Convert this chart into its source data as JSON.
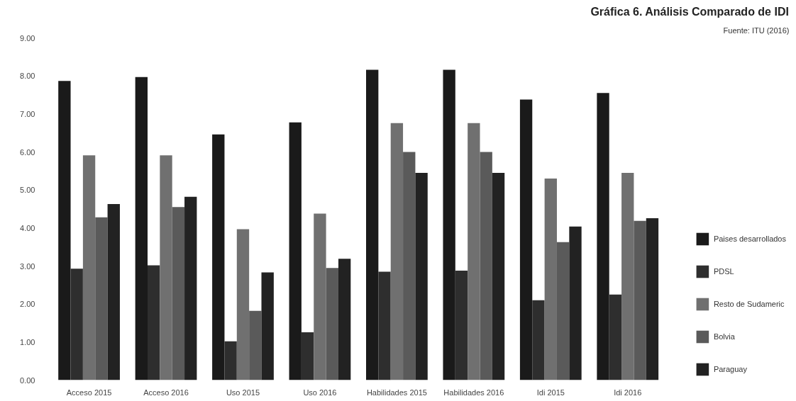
{
  "chart_data": {
    "type": "bar",
    "title": "Gráfica 6. Análisis Comparado de IDI",
    "annotations": [
      "Fuente: ITU (2016)"
    ],
    "categories": [
      "Acceso 2015",
      "Acceso 2016",
      "Uso 2015",
      "Uso 2016",
      "Habilidades 2015",
      "Habilidades 2016",
      "Idi 2015",
      "Idi 2016"
    ],
    "series": [
      {
        "name": "Paises desarrollados",
        "color": "#1a1a1a",
        "values": [
          7.87,
          7.97,
          6.46,
          6.78,
          8.16,
          8.16,
          7.38,
          7.55
        ]
      },
      {
        "name": "PDSL",
        "color": "#2e2e2e",
        "values": [
          2.93,
          3.02,
          1.02,
          1.26,
          2.85,
          2.88,
          2.1,
          2.25
        ]
      },
      {
        "name": "Resto de Sudameric",
        "color": "#707070",
        "values": [
          5.91,
          5.91,
          3.97,
          4.38,
          6.76,
          6.76,
          5.3,
          5.45
        ]
      },
      {
        "name": "Bolvia",
        "color": "#5a5a5a",
        "values": [
          4.28,
          4.55,
          1.82,
          2.95,
          6.0,
          6.0,
          3.63,
          4.19
        ]
      },
      {
        "name": "Paraguay",
        "color": "#222222",
        "values": [
          4.63,
          4.82,
          2.83,
          3.19,
          5.45,
          5.45,
          4.04,
          4.26
        ]
      }
    ],
    "ylim": [
      0,
      9
    ],
    "yticks": [
      {
        "value": 0,
        "label": "0.00"
      },
      {
        "value": 1,
        "label": "1.00"
      },
      {
        "value": 2,
        "label": "2.00"
      },
      {
        "value": 3,
        "label": "3.00"
      },
      {
        "value": 4,
        "label": "4.00"
      },
      {
        "value": 5,
        "label": "5.00"
      },
      {
        "value": 6,
        "label": "6.00"
      },
      {
        "value": 7,
        "label": "7.00"
      },
      {
        "value": 8,
        "label": "8.00"
      },
      {
        "value": 9,
        "label": "9.00"
      }
    ],
    "grid": false,
    "legend": "right"
  }
}
